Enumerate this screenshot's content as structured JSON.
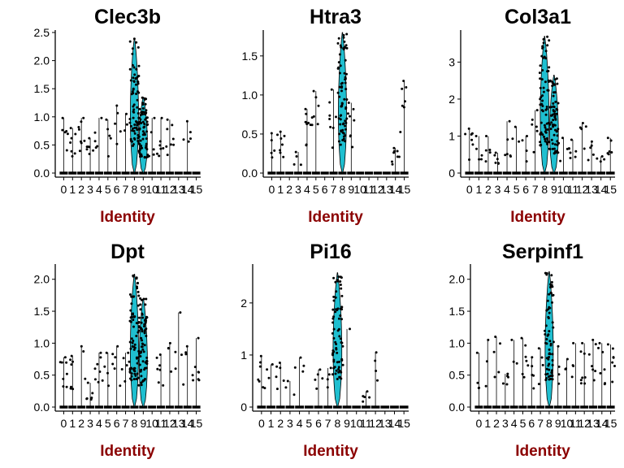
{
  "colors": {
    "violin_fill": "#1FBFD0",
    "xlabel": "#8B0000",
    "points": "#000000",
    "axis": "#000000"
  },
  "chart_data": [
    {
      "type": "violin",
      "title": "Clec3b",
      "xlabel": "Identity",
      "categories": [
        "0",
        "1",
        "2",
        "3",
        "4",
        "5",
        "6",
        "7",
        "8",
        "9",
        "10",
        "11",
        "12",
        "13",
        "14",
        "15"
      ],
      "ylim": [
        0,
        2.5
      ],
      "yticks": [
        0.0,
        0.5,
        1.0,
        1.5,
        2.0,
        2.5
      ],
      "ytick_labels": [
        "0.0",
        "0.5",
        "1.0",
        "1.5",
        "2.0",
        "2.5"
      ],
      "max_per_cluster": [
        0.98,
        0.8,
        0.98,
        0.62,
        0.98,
        0.95,
        1.2,
        1.05,
        2.4,
        1.35,
        0.98,
        0.98,
        0.95,
        0.05,
        0.92,
        0.03
      ],
      "violin_clusters": [
        8,
        9
      ]
    },
    {
      "type": "violin",
      "title": "Htra3",
      "xlabel": "Identity",
      "categories": [
        "0",
        "1",
        "2",
        "3",
        "4",
        "5",
        "6",
        "7",
        "8",
        "9",
        "10",
        "11",
        "12",
        "13",
        "14",
        "15"
      ],
      "ylim": [
        0,
        1.8
      ],
      "yticks": [
        0.0,
        0.5,
        1.0,
        1.5
      ],
      "ytick_labels": [
        "0.0",
        "0.5",
        "1.0",
        "1.5"
      ],
      "max_per_cluster": [
        0.51,
        0.53,
        0.03,
        0.27,
        0.82,
        1.05,
        0.03,
        1.07,
        1.8,
        0.9,
        0.03,
        0.03,
        0.03,
        0.03,
        0.32,
        1.18
      ],
      "violin_clusters": [
        8
      ]
    },
    {
      "type": "violin",
      "title": "Col3a1",
      "xlabel": "Identity",
      "categories": [
        "0",
        "1",
        "2",
        "3",
        "4",
        "5",
        "6",
        "7",
        "8",
        "9",
        "10",
        "11",
        "12",
        "13",
        "14",
        "15"
      ],
      "ylim": [
        0,
        3.8
      ],
      "yticks": [
        0,
        1,
        2,
        3
      ],
      "ytick_labels": [
        "0",
        "1",
        "2",
        "3"
      ],
      "max_per_cluster": [
        1.2,
        1.0,
        1.0,
        0.55,
        1.4,
        1.25,
        1.0,
        1.7,
        3.7,
        2.65,
        0.95,
        0.9,
        1.35,
        0.85,
        0.45,
        0.95
      ],
      "violin_clusters": [
        8,
        9
      ]
    },
    {
      "type": "violin",
      "title": "Dpt",
      "xlabel": "Identity",
      "categories": [
        "0",
        "1",
        "2",
        "3",
        "4",
        "5",
        "6",
        "7",
        "8",
        "9",
        "10",
        "11",
        "12",
        "13",
        "14",
        "15"
      ],
      "ylim": [
        0,
        2.2
      ],
      "yticks": [
        0.0,
        0.5,
        1.0,
        1.5,
        2.0
      ],
      "ytick_labels": [
        "0.0",
        "0.5",
        "1.0",
        "1.5",
        "2.0"
      ],
      "max_per_cluster": [
        0.78,
        0.8,
        0.95,
        0.38,
        0.85,
        0.85,
        0.95,
        0.85,
        2.08,
        1.7,
        0.05,
        0.82,
        1.0,
        1.48,
        0.95,
        1.08
      ],
      "violin_clusters": [
        8,
        9
      ]
    },
    {
      "type": "violin",
      "title": "Pi16",
      "xlabel": "Identity",
      "categories": [
        "0",
        "1",
        "2",
        "3",
        "4",
        "5",
        "6",
        "7",
        "8",
        "9",
        "10",
        "11",
        "12",
        "13",
        "14",
        "15"
      ],
      "ylim": [
        0,
        2.7
      ],
      "yticks": [
        0,
        1,
        2
      ],
      "ytick_labels": [
        "0",
        "1",
        "2"
      ],
      "max_per_cluster": [
        0.98,
        0.82,
        0.85,
        0.5,
        0.95,
        0.05,
        0.72,
        0.75,
        2.58,
        1.5,
        0.05,
        0.3,
        1.05,
        0.05,
        0.05,
        0.05
      ],
      "violin_clusters": [
        8
      ]
    },
    {
      "type": "violin",
      "title": "Serpinf1",
      "xlabel": "Identity",
      "categories": [
        "0",
        "1",
        "2",
        "3",
        "4",
        "5",
        "6",
        "7",
        "8",
        "9",
        "10",
        "11",
        "12",
        "13",
        "14",
        "15"
      ],
      "ylim": [
        0,
        2.2
      ],
      "yticks": [
        0.0,
        0.5,
        1.0,
        1.5,
        2.0
      ],
      "ytick_labels": [
        "0.0",
        "0.5",
        "1.0",
        "1.5",
        "2.0"
      ],
      "max_per_cluster": [
        0.85,
        1.05,
        1.1,
        0.52,
        1.05,
        1.08,
        0.78,
        0.92,
        2.12,
        0.95,
        0.75,
        1.0,
        1.0,
        1.05,
        1.0,
        0.98
      ],
      "violin_clusters": [
        8
      ]
    }
  ]
}
